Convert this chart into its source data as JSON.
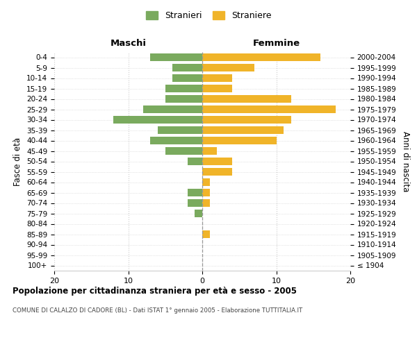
{
  "age_groups": [
    "100+",
    "95-99",
    "90-94",
    "85-89",
    "80-84",
    "75-79",
    "70-74",
    "65-69",
    "60-64",
    "55-59",
    "50-54",
    "45-49",
    "40-44",
    "35-39",
    "30-34",
    "25-29",
    "20-24",
    "15-19",
    "10-14",
    "5-9",
    "0-4"
  ],
  "birth_years": [
    "≤ 1904",
    "1905-1909",
    "1910-1914",
    "1915-1919",
    "1920-1924",
    "1925-1929",
    "1930-1934",
    "1935-1939",
    "1940-1944",
    "1945-1949",
    "1950-1954",
    "1955-1959",
    "1960-1964",
    "1965-1969",
    "1970-1974",
    "1975-1979",
    "1980-1984",
    "1985-1989",
    "1990-1994",
    "1995-1999",
    "2000-2004"
  ],
  "males": [
    0,
    0,
    0,
    0,
    0,
    1,
    2,
    2,
    0,
    0,
    2,
    5,
    7,
    6,
    12,
    8,
    5,
    5,
    4,
    4,
    7
  ],
  "females": [
    0,
    0,
    0,
    1,
    0,
    0,
    1,
    1,
    1,
    4,
    4,
    2,
    10,
    11,
    12,
    18,
    12,
    4,
    4,
    7,
    16
  ],
  "male_color": "#7aaa5e",
  "female_color": "#f0b429",
  "background_color": "#ffffff",
  "grid_color": "#cccccc",
  "title": "Popolazione per cittadinanza straniera per età e sesso - 2005",
  "subtitle": "COMUNE DI CALALZO DI CADORE (BL) - Dati ISTAT 1° gennaio 2005 - Elaborazione TUTTITALIA.IT",
  "ylabel_left": "Fasce di età",
  "ylabel_right": "Anni di nascita",
  "xlabel_left": "Maschi",
  "xlabel_right": "Femmine",
  "legend_male": "Stranieri",
  "legend_female": "Straniere",
  "xlim": 20
}
